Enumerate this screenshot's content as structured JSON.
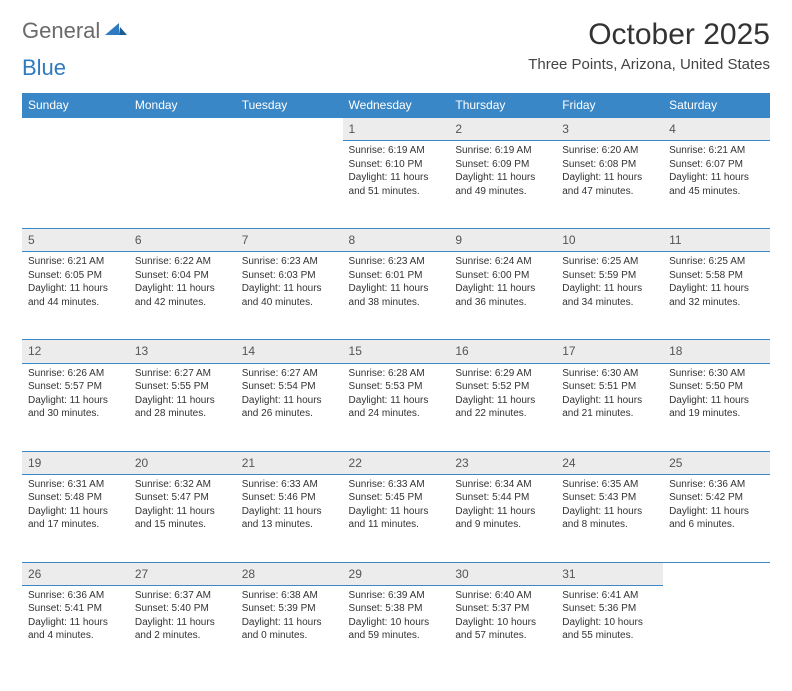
{
  "logo": {
    "word1": "General",
    "word2": "Blue"
  },
  "title": "October 2025",
  "location": "Three Points, Arizona, United States",
  "colors": {
    "header_bg": "#3a87c7",
    "header_text": "#ffffff",
    "daynum_bg": "#ececec",
    "border": "#3a87c7",
    "logo_gray": "#6a6a6a",
    "logo_blue": "#2f7bbf"
  },
  "weekdays": [
    "Sunday",
    "Monday",
    "Tuesday",
    "Wednesday",
    "Thursday",
    "Friday",
    "Saturday"
  ],
  "weeks": [
    [
      null,
      null,
      null,
      {
        "n": "1",
        "sr": "Sunrise: 6:19 AM",
        "ss": "Sunset: 6:10 PM",
        "d1": "Daylight: 11 hours",
        "d2": "and 51 minutes."
      },
      {
        "n": "2",
        "sr": "Sunrise: 6:19 AM",
        "ss": "Sunset: 6:09 PM",
        "d1": "Daylight: 11 hours",
        "d2": "and 49 minutes."
      },
      {
        "n": "3",
        "sr": "Sunrise: 6:20 AM",
        "ss": "Sunset: 6:08 PM",
        "d1": "Daylight: 11 hours",
        "d2": "and 47 minutes."
      },
      {
        "n": "4",
        "sr": "Sunrise: 6:21 AM",
        "ss": "Sunset: 6:07 PM",
        "d1": "Daylight: 11 hours",
        "d2": "and 45 minutes."
      }
    ],
    [
      {
        "n": "5",
        "sr": "Sunrise: 6:21 AM",
        "ss": "Sunset: 6:05 PM",
        "d1": "Daylight: 11 hours",
        "d2": "and 44 minutes."
      },
      {
        "n": "6",
        "sr": "Sunrise: 6:22 AM",
        "ss": "Sunset: 6:04 PM",
        "d1": "Daylight: 11 hours",
        "d2": "and 42 minutes."
      },
      {
        "n": "7",
        "sr": "Sunrise: 6:23 AM",
        "ss": "Sunset: 6:03 PM",
        "d1": "Daylight: 11 hours",
        "d2": "and 40 minutes."
      },
      {
        "n": "8",
        "sr": "Sunrise: 6:23 AM",
        "ss": "Sunset: 6:01 PM",
        "d1": "Daylight: 11 hours",
        "d2": "and 38 minutes."
      },
      {
        "n": "9",
        "sr": "Sunrise: 6:24 AM",
        "ss": "Sunset: 6:00 PM",
        "d1": "Daylight: 11 hours",
        "d2": "and 36 minutes."
      },
      {
        "n": "10",
        "sr": "Sunrise: 6:25 AM",
        "ss": "Sunset: 5:59 PM",
        "d1": "Daylight: 11 hours",
        "d2": "and 34 minutes."
      },
      {
        "n": "11",
        "sr": "Sunrise: 6:25 AM",
        "ss": "Sunset: 5:58 PM",
        "d1": "Daylight: 11 hours",
        "d2": "and 32 minutes."
      }
    ],
    [
      {
        "n": "12",
        "sr": "Sunrise: 6:26 AM",
        "ss": "Sunset: 5:57 PM",
        "d1": "Daylight: 11 hours",
        "d2": "and 30 minutes."
      },
      {
        "n": "13",
        "sr": "Sunrise: 6:27 AM",
        "ss": "Sunset: 5:55 PM",
        "d1": "Daylight: 11 hours",
        "d2": "and 28 minutes."
      },
      {
        "n": "14",
        "sr": "Sunrise: 6:27 AM",
        "ss": "Sunset: 5:54 PM",
        "d1": "Daylight: 11 hours",
        "d2": "and 26 minutes."
      },
      {
        "n": "15",
        "sr": "Sunrise: 6:28 AM",
        "ss": "Sunset: 5:53 PM",
        "d1": "Daylight: 11 hours",
        "d2": "and 24 minutes."
      },
      {
        "n": "16",
        "sr": "Sunrise: 6:29 AM",
        "ss": "Sunset: 5:52 PM",
        "d1": "Daylight: 11 hours",
        "d2": "and 22 minutes."
      },
      {
        "n": "17",
        "sr": "Sunrise: 6:30 AM",
        "ss": "Sunset: 5:51 PM",
        "d1": "Daylight: 11 hours",
        "d2": "and 21 minutes."
      },
      {
        "n": "18",
        "sr": "Sunrise: 6:30 AM",
        "ss": "Sunset: 5:50 PM",
        "d1": "Daylight: 11 hours",
        "d2": "and 19 minutes."
      }
    ],
    [
      {
        "n": "19",
        "sr": "Sunrise: 6:31 AM",
        "ss": "Sunset: 5:48 PM",
        "d1": "Daylight: 11 hours",
        "d2": "and 17 minutes."
      },
      {
        "n": "20",
        "sr": "Sunrise: 6:32 AM",
        "ss": "Sunset: 5:47 PM",
        "d1": "Daylight: 11 hours",
        "d2": "and 15 minutes."
      },
      {
        "n": "21",
        "sr": "Sunrise: 6:33 AM",
        "ss": "Sunset: 5:46 PM",
        "d1": "Daylight: 11 hours",
        "d2": "and 13 minutes."
      },
      {
        "n": "22",
        "sr": "Sunrise: 6:33 AM",
        "ss": "Sunset: 5:45 PM",
        "d1": "Daylight: 11 hours",
        "d2": "and 11 minutes."
      },
      {
        "n": "23",
        "sr": "Sunrise: 6:34 AM",
        "ss": "Sunset: 5:44 PM",
        "d1": "Daylight: 11 hours",
        "d2": "and 9 minutes."
      },
      {
        "n": "24",
        "sr": "Sunrise: 6:35 AM",
        "ss": "Sunset: 5:43 PM",
        "d1": "Daylight: 11 hours",
        "d2": "and 8 minutes."
      },
      {
        "n": "25",
        "sr": "Sunrise: 6:36 AM",
        "ss": "Sunset: 5:42 PM",
        "d1": "Daylight: 11 hours",
        "d2": "and 6 minutes."
      }
    ],
    [
      {
        "n": "26",
        "sr": "Sunrise: 6:36 AM",
        "ss": "Sunset: 5:41 PM",
        "d1": "Daylight: 11 hours",
        "d2": "and 4 minutes."
      },
      {
        "n": "27",
        "sr": "Sunrise: 6:37 AM",
        "ss": "Sunset: 5:40 PM",
        "d1": "Daylight: 11 hours",
        "d2": "and 2 minutes."
      },
      {
        "n": "28",
        "sr": "Sunrise: 6:38 AM",
        "ss": "Sunset: 5:39 PM",
        "d1": "Daylight: 11 hours",
        "d2": "and 0 minutes."
      },
      {
        "n": "29",
        "sr": "Sunrise: 6:39 AM",
        "ss": "Sunset: 5:38 PM",
        "d1": "Daylight: 10 hours",
        "d2": "and 59 minutes."
      },
      {
        "n": "30",
        "sr": "Sunrise: 6:40 AM",
        "ss": "Sunset: 5:37 PM",
        "d1": "Daylight: 10 hours",
        "d2": "and 57 minutes."
      },
      {
        "n": "31",
        "sr": "Sunrise: 6:41 AM",
        "ss": "Sunset: 5:36 PM",
        "d1": "Daylight: 10 hours",
        "d2": "and 55 minutes."
      },
      null
    ]
  ]
}
